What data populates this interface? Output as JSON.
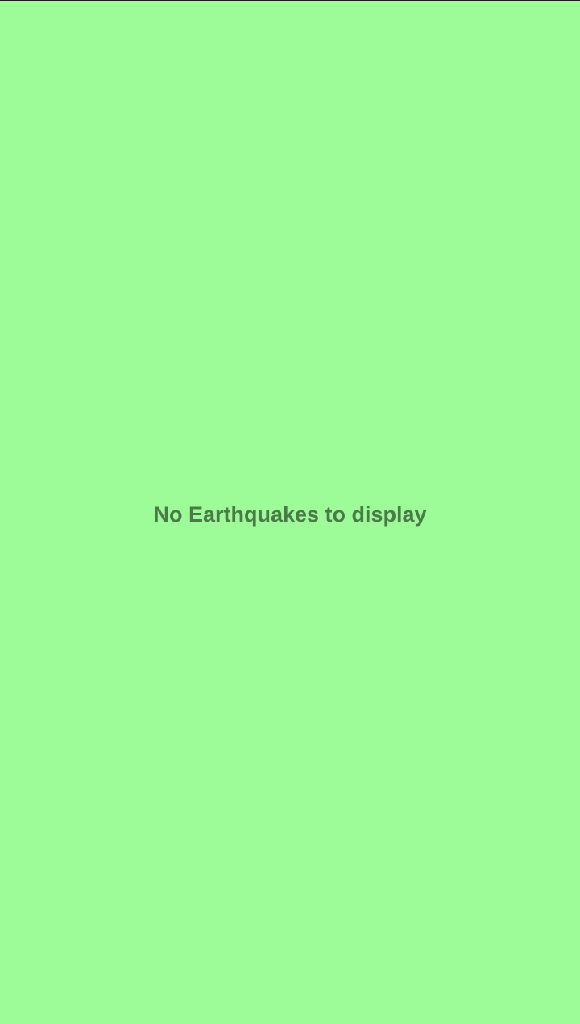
{
  "theme": {
    "background_color": "#9efc98",
    "text_color": "#4a7a47"
  },
  "empty_state": {
    "message": "No Earthquakes to display"
  }
}
